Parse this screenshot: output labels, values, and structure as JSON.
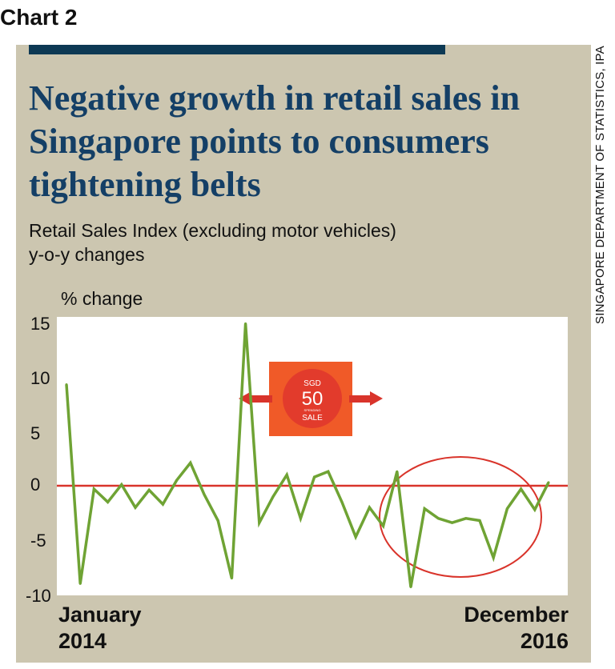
{
  "header": "Chart 2",
  "title": "Negative growth in retail sales in Singapore points to consumers tightening belts",
  "subtitle_line1": "Retail Sales Index (excluding motor vehicles)",
  "subtitle_line2": "y-o-y changes",
  "source": "SINGAPORE DEPARTMENT OF STATISTICS, IPA",
  "badge": {
    "currency": "SGD",
    "amount": "50",
    "small_text": "SPENDING",
    "word": "SALE"
  },
  "colors": {
    "line": "#6fa334",
    "zero_line": "#d9342b",
    "title": "#143f66",
    "panel": "#ccc6b0",
    "highlight": "#d9342b",
    "badge_bg": "#f05a28"
  },
  "chart_data": {
    "type": "line",
    "ylabel": "% change",
    "ylim": [
      -10,
      15
    ],
    "yticks": [
      "15",
      "10",
      "5",
      "0",
      "-5",
      "-10"
    ],
    "x_start_label": [
      "January",
      "2014"
    ],
    "x_end_label": [
      "December",
      "2016"
    ],
    "x": [
      "Jan 2014",
      "Feb 2014",
      "Mar 2014",
      "Apr 2014",
      "May 2014",
      "Jun 2014",
      "Jul 2014",
      "Aug 2014",
      "Sep 2014",
      "Oct 2014",
      "Nov 2014",
      "Dec 2014",
      "Jan 2015",
      "Feb 2015",
      "Mar 2015",
      "Apr 2015",
      "May 2015",
      "Jun 2015",
      "Jul 2015",
      "Aug 2015",
      "Sep 2015",
      "Oct 2015",
      "Nov 2015",
      "Dec 2015",
      "Jan 2016",
      "Feb 2016",
      "Mar 2016",
      "Apr 2016",
      "May 2016",
      "Jun 2016",
      "Jul 2016",
      "Aug 2016",
      "Sep 2016",
      "Oct 2016",
      "Nov 2016",
      "Dec 2016"
    ],
    "values": [
      9.3,
      -9.0,
      -0.3,
      -1.5,
      0.1,
      -2.0,
      -0.4,
      -1.7,
      0.5,
      2.1,
      -0.8,
      -3.2,
      -8.5,
      14.9,
      -3.4,
      -1.0,
      1.0,
      -3.0,
      0.8,
      1.3,
      -1.5,
      -4.7,
      -2.0,
      -3.7,
      1.3,
      -9.3,
      -2.1,
      -3.0,
      -3.4,
      -3.0,
      -3.2,
      -6.6,
      -2.1,
      -0.3,
      -2.2,
      0.3
    ],
    "grid": false,
    "annotations": [
      "horizontal zero line",
      "circle highlighting 2016 period",
      "SGD 50 sale badge with arrows"
    ]
  }
}
